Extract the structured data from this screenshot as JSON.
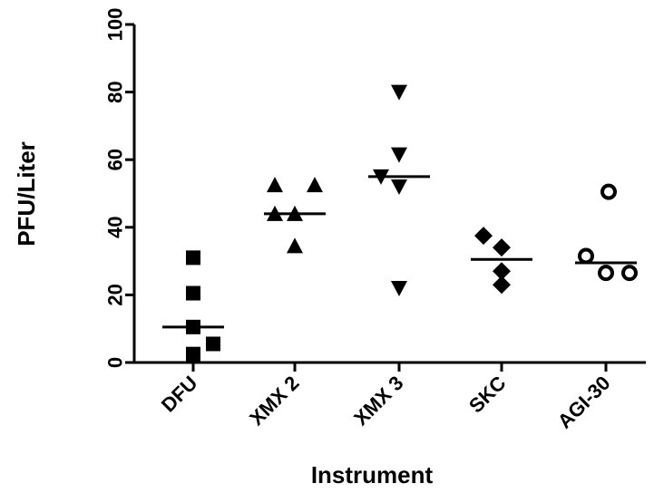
{
  "chart_data": {
    "type": "scatter",
    "title": "",
    "xlabel": "Instrument",
    "ylabel": "PFU/Liter",
    "ylim": [
      0,
      100
    ],
    "yticks": [
      0,
      20,
      40,
      60,
      80,
      100
    ],
    "grid": false,
    "categories": [
      "DFU",
      "XMX 2",
      "XMX 3",
      "SKC",
      "AGI-30"
    ],
    "series": [
      {
        "category": "DFU",
        "marker": "square",
        "values": [
          31,
          20.5,
          10.5,
          5.5,
          2.5
        ],
        "median": 10.5
      },
      {
        "category": "XMX 2",
        "marker": "triangle-up",
        "values": [
          52.5,
          52.5,
          44,
          44,
          34.5
        ],
        "median": 44
      },
      {
        "category": "XMX 3",
        "marker": "triangle-down",
        "values": [
          80,
          61.5,
          55,
          52,
          22
        ],
        "median": 55
      },
      {
        "category": "SKC",
        "marker": "diamond",
        "values": [
          37.5,
          34,
          27,
          23
        ],
        "median": 30.5
      },
      {
        "category": "AGI-30",
        "marker": "circle-open",
        "values": [
          50.5,
          31.5,
          26.5,
          26.5
        ],
        "median": 29.5
      }
    ]
  }
}
